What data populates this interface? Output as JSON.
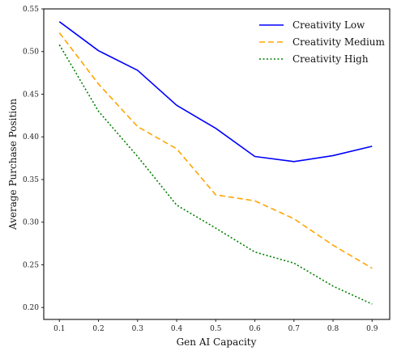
{
  "chart_data": {
    "type": "line",
    "title": "",
    "xlabel": "Gen AI Capacity",
    "ylabel": "Average Purchase Position",
    "x": [
      0.1,
      0.2,
      0.3,
      0.4,
      0.5,
      0.6,
      0.7,
      0.8,
      0.9
    ],
    "x_ticks": [
      "0.1",
      "0.2",
      "0.3",
      "0.4",
      "0.5",
      "0.6",
      "0.7",
      "0.8",
      "0.9"
    ],
    "y_ticks": [
      "0.20",
      "0.25",
      "0.30",
      "0.35",
      "0.40",
      "0.45",
      "0.50",
      "0.55"
    ],
    "xlim": [
      0.06,
      0.945
    ],
    "ylim": [
      0.186,
      0.55
    ],
    "grid": false,
    "legend_position": "top-right",
    "series": [
      {
        "name": "Creativity Low",
        "color": "#0000ff",
        "style": "solid",
        "values": [
          0.535,
          0.501,
          0.478,
          0.437,
          0.41,
          0.377,
          0.371,
          0.378,
          0.389
        ]
      },
      {
        "name": "Creativity Medium",
        "color": "#ffa500",
        "style": "dashed",
        "values": [
          0.522,
          0.462,
          0.412,
          0.386,
          0.332,
          0.325,
          0.304,
          0.273,
          0.246
        ]
      },
      {
        "name": "Creativity High",
        "color": "#008000",
        "style": "dotted",
        "values": [
          0.508,
          0.43,
          0.377,
          0.32,
          0.293,
          0.265,
          0.252,
          0.225,
          0.204
        ]
      }
    ]
  }
}
